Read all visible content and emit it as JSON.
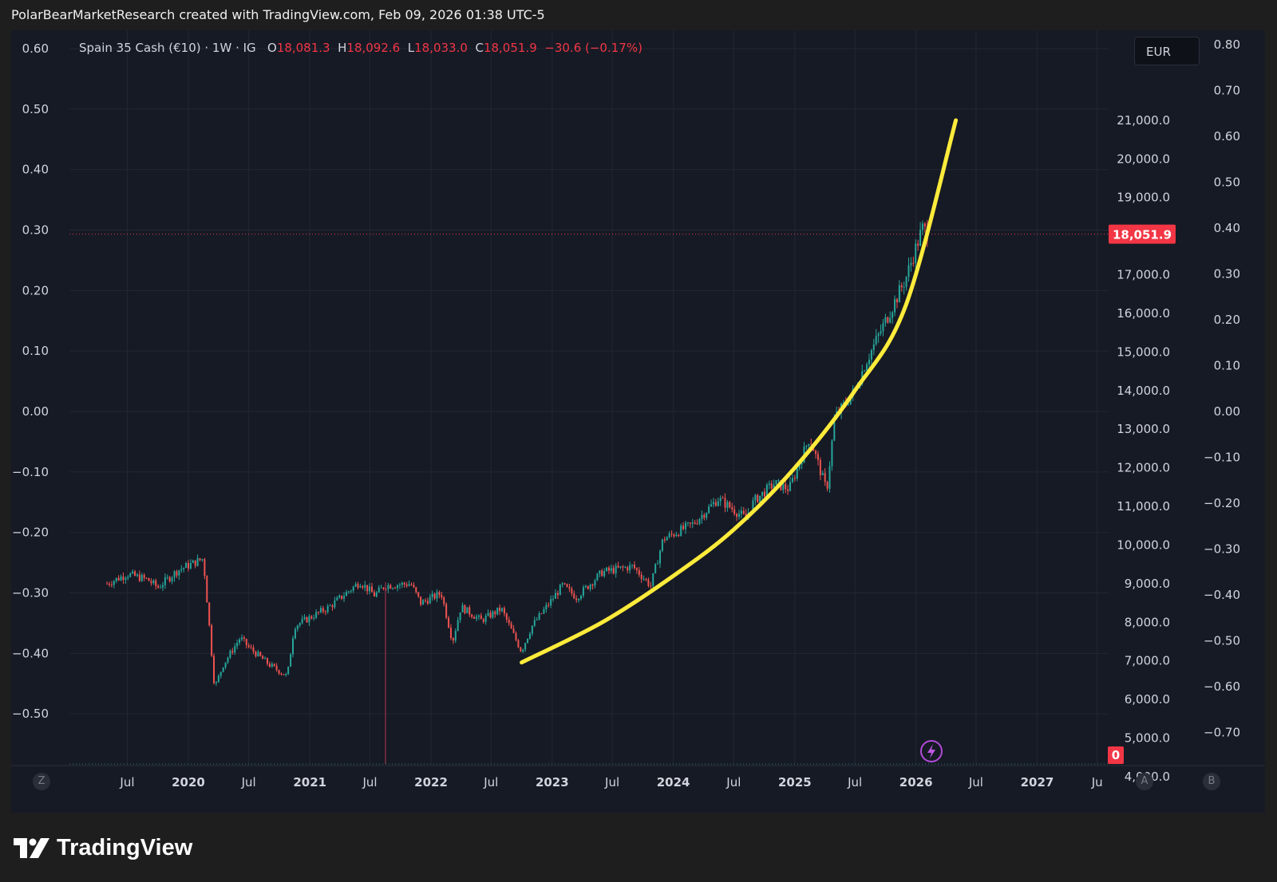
{
  "header": {
    "caption": "PolarBearMarketResearch created with TradingView.com, Feb 09, 2026 01:38 UTC-5"
  },
  "legend": {
    "symbol": "Spain 35 Cash (€10) · 1W · IG",
    "open_label": "O",
    "open": "18,081.3",
    "high_label": "H",
    "high": "18,092.6",
    "low_label": "L",
    "low": "18,033.0",
    "close_label": "C",
    "close": "18,051.9",
    "change": "−30.6 (−0.17%)"
  },
  "currency": "EUR",
  "corner_buttons": {
    "left": "Z",
    "auto": "A",
    "right": "B"
  },
  "alert_icon": "lightning-icon",
  "brand": {
    "name": "TradingView",
    "logo_icon": "tradingview-logo-icon"
  },
  "colors": {
    "background": "#161a25",
    "up": "#26a69a",
    "down": "#ef5350",
    "trend_curve": "#ffeb3b",
    "last_price": "#f23645"
  },
  "chart_data": {
    "type": "candlestick",
    "timeframe": "1W",
    "last_price": "18,051.9",
    "volume_label": "0",
    "price_ticks": [
      "4,000.0",
      "5,000.0",
      "6,000.0",
      "7,000.0",
      "8,000.0",
      "9,000.0",
      "10,000.0",
      "11,000.0",
      "12,000.0",
      "13,000.0",
      "14,000.0",
      "15,000.0",
      "16,000.0",
      "17,000.0",
      "19,000.0",
      "20,000.0",
      "21,000.0"
    ],
    "left_axis_ticks": [
      "0.60",
      "0.50",
      "0.40",
      "0.30",
      "0.20",
      "0.10",
      "0.00",
      "−0.10",
      "−0.20",
      "−0.30",
      "−0.40",
      "−0.50"
    ],
    "right_outer_ticks": [
      "0.80",
      "0.70",
      "0.60",
      "0.50",
      "0.40",
      "0.30",
      "0.20",
      "0.10",
      "0.00",
      "−0.10",
      "−0.20",
      "−0.30",
      "−0.40",
      "−0.50",
      "−0.60",
      "−0.70"
    ],
    "x_ticks": [
      "Jul",
      "2020",
      "Jul",
      "2021",
      "Jul",
      "2022",
      "Jul",
      "2023",
      "Jul",
      "2024",
      "Jul",
      "2025",
      "Jul",
      "2026",
      "Jul",
      "2027",
      "Ju"
    ],
    "price_path": [
      [
        "2019-05-01",
        9000
      ],
      [
        "2019-07-01",
        9250
      ],
      [
        "2019-09-01",
        9100
      ],
      [
        "2019-10-01",
        8900
      ],
      [
        "2019-12-01",
        9350
      ],
      [
        "2020-02-15",
        9650
      ],
      [
        "2020-03-01",
        8200
      ],
      [
        "2020-03-20",
        6300
      ],
      [
        "2020-04-15",
        6900
      ],
      [
        "2020-06-05",
        7600
      ],
      [
        "2020-07-01",
        7350
      ],
      [
        "2020-09-01",
        6900
      ],
      [
        "2020-10-25",
        6600
      ],
      [
        "2020-11-15",
        7900
      ],
      [
        "2021-03-01",
        8400
      ],
      [
        "2021-06-01",
        9050
      ],
      [
        "2021-07-15",
        8700
      ],
      [
        "2021-08-15",
        8950
      ],
      [
        "2021-11-01",
        9000
      ],
      [
        "2021-12-01",
        8500
      ],
      [
        "2022-02-01",
        8750
      ],
      [
        "2022-03-07",
        7500
      ],
      [
        "2022-04-01",
        8400
      ],
      [
        "2022-06-01",
        8050
      ],
      [
        "2022-08-01",
        8350
      ],
      [
        "2022-09-30",
        7250
      ],
      [
        "2022-11-01",
        7900
      ],
      [
        "2023-02-01",
        8950
      ],
      [
        "2023-03-15",
        8650
      ],
      [
        "2023-06-01",
        9300
      ],
      [
        "2023-09-01",
        9450
      ],
      [
        "2023-10-25",
        8950
      ],
      [
        "2023-12-01",
        10150
      ],
      [
        "2024-03-01",
        10550
      ],
      [
        "2024-05-15",
        11200
      ],
      [
        "2024-08-05",
        10700
      ],
      [
        "2024-09-01",
        11150
      ],
      [
        "2024-11-01",
        11600
      ],
      [
        "2024-12-15",
        11450
      ],
      [
        "2025-02-15",
        12800
      ],
      [
        "2025-04-07",
        11400
      ],
      [
        "2025-05-01",
        13300
      ],
      [
        "2025-07-01",
        14000
      ],
      [
        "2025-08-01",
        14700
      ],
      [
        "2025-10-01",
        15800
      ],
      [
        "2025-12-01",
        16900
      ],
      [
        "2026-01-20",
        18200
      ],
      [
        "2026-02-09",
        18051.9
      ]
    ],
    "trend_curve": {
      "style": "exponential-fit",
      "points": [
        [
          "2022-10-01",
          6960
        ],
        [
          "2023-06-01",
          8000
        ],
        [
          "2024-01-01",
          9200
        ],
        [
          "2024-07-01",
          10400
        ],
        [
          "2025-01-01",
          12000
        ],
        [
          "2025-07-01",
          14000
        ],
        [
          "2025-12-01",
          16200
        ],
        [
          "2026-05-01",
          21000
        ]
      ]
    },
    "grid": true
  }
}
